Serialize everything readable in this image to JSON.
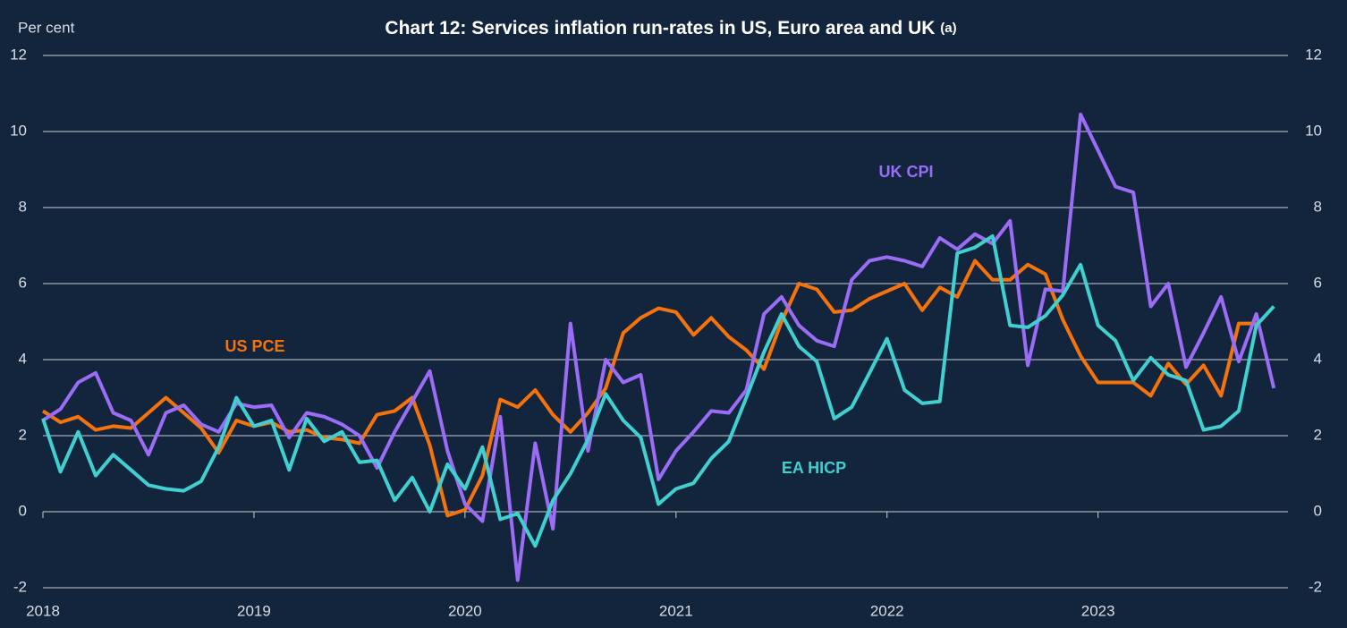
{
  "chart_data": {
    "type": "line",
    "title": "Chart 12: Services inflation run-rates in US, Euro area and UK",
    "title_note": "(a)",
    "y_label": "Per cent",
    "x": [
      2018,
      2018.083,
      2018.167,
      2018.25,
      2018.333,
      2018.417,
      2018.5,
      2018.583,
      2018.667,
      2018.75,
      2018.833,
      2018.917,
      2019,
      2019.083,
      2019.167,
      2019.25,
      2019.333,
      2019.417,
      2019.5,
      2019.583,
      2019.667,
      2019.75,
      2019.833,
      2019.917,
      2020,
      2020.083,
      2020.167,
      2020.25,
      2020.333,
      2020.417,
      2020.5,
      2020.583,
      2020.667,
      2020.75,
      2020.833,
      2020.917,
      2021,
      2021.083,
      2021.167,
      2021.25,
      2021.333,
      2021.417,
      2021.5,
      2021.583,
      2021.667,
      2021.75,
      2021.833,
      2021.917,
      2022,
      2022.083,
      2022.167,
      2022.25,
      2022.333,
      2022.417,
      2022.5,
      2022.583,
      2022.667,
      2022.75,
      2022.833,
      2022.917,
      2023,
      2023.083,
      2023.167,
      2023.25,
      2023.333,
      2023.417,
      2023.5,
      2023.583,
      2023.667,
      2023.75,
      2023.833
    ],
    "series": [
      {
        "name": "US PCE",
        "color": "#f5730d",
        "values": [
          2.65,
          2.35,
          2.5,
          2.15,
          2.25,
          2.2,
          2.6,
          3.0,
          2.6,
          2.2,
          1.55,
          2.4,
          2.25,
          2.35,
          2.1,
          2.15,
          1.95,
          1.9,
          1.8,
          2.55,
          2.65,
          3.0,
          1.75,
          -0.1,
          0.05,
          0.95,
          2.95,
          2.75,
          3.2,
          2.55,
          2.1,
          2.6,
          3.25,
          4.7,
          5.1,
          5.35,
          5.25,
          4.65,
          5.1,
          4.6,
          4.25,
          3.75,
          5.0,
          6.0,
          5.85,
          5.25,
          5.3,
          5.6,
          5.8,
          6.0,
          5.3,
          5.9,
          5.65,
          6.6,
          6.1,
          6.1,
          6.5,
          6.25,
          5.05,
          4.1,
          3.4,
          3.4,
          3.4,
          3.05,
          3.9,
          3.35,
          3.85,
          3.05,
          4.95,
          4.95,
          null
        ]
      },
      {
        "name": "UK CPI",
        "color": "#9b6cf5",
        "values": [
          2.4,
          2.7,
          3.4,
          3.65,
          2.6,
          2.4,
          1.5,
          2.6,
          2.8,
          2.3,
          2.1,
          2.85,
          2.75,
          2.8,
          1.95,
          2.6,
          2.5,
          2.3,
          2.0,
          1.15,
          2.1,
          2.9,
          3.7,
          1.6,
          0.2,
          -0.25,
          2.5,
          -1.8,
          1.8,
          -0.45,
          4.95,
          1.6,
          4.0,
          3.4,
          3.6,
          0.85,
          1.6,
          2.1,
          2.65,
          2.6,
          3.2,
          5.2,
          5.65,
          4.9,
          4.5,
          4.35,
          6.1,
          6.6,
          6.7,
          6.6,
          6.45,
          7.2,
          6.9,
          7.3,
          7.05,
          7.65,
          3.85,
          5.85,
          5.8,
          10.45,
          9.5,
          8.55,
          8.4,
          5.4,
          6.0,
          3.8,
          4.7,
          5.65,
          3.95,
          5.2,
          3.25
        ]
      },
      {
        "name": "EA HICP",
        "color": "#3fd0cf",
        "values": [
          2.45,
          1.05,
          2.1,
          0.95,
          1.5,
          1.1,
          0.7,
          0.6,
          0.55,
          0.8,
          1.7,
          3.0,
          2.25,
          2.4,
          1.1,
          2.45,
          1.85,
          2.1,
          1.3,
          1.35,
          0.3,
          0.9,
          0.0,
          1.25,
          0.6,
          1.7,
          -0.2,
          -0.05,
          -0.9,
          0.3,
          1.0,
          1.9,
          3.1,
          2.4,
          1.95,
          0.2,
          0.6,
          0.75,
          1.4,
          1.85,
          3.0,
          4.2,
          5.2,
          4.35,
          3.95,
          2.45,
          2.75,
          3.65,
          4.55,
          3.2,
          2.85,
          2.9,
          6.8,
          6.95,
          7.25,
          4.9,
          4.85,
          5.15,
          5.7,
          6.5,
          4.9,
          4.5,
          3.45,
          4.05,
          3.6,
          3.45,
          2.15,
          2.25,
          2.65,
          4.9,
          5.4
        ]
      }
    ],
    "xlim": [
      2018,
      2023.9
    ],
    "xticks": [
      2018,
      2019,
      2020,
      2021,
      2022,
      2023
    ],
    "ylim": [
      -2,
      12
    ],
    "yticks": [
      -2,
      0,
      2,
      4,
      6,
      8,
      10,
      12
    ],
    "y2lim": [
      -2,
      12
    ],
    "y2ticks": [
      -2,
      0,
      2,
      4,
      6,
      8,
      10,
      12
    ],
    "grid": true
  }
}
